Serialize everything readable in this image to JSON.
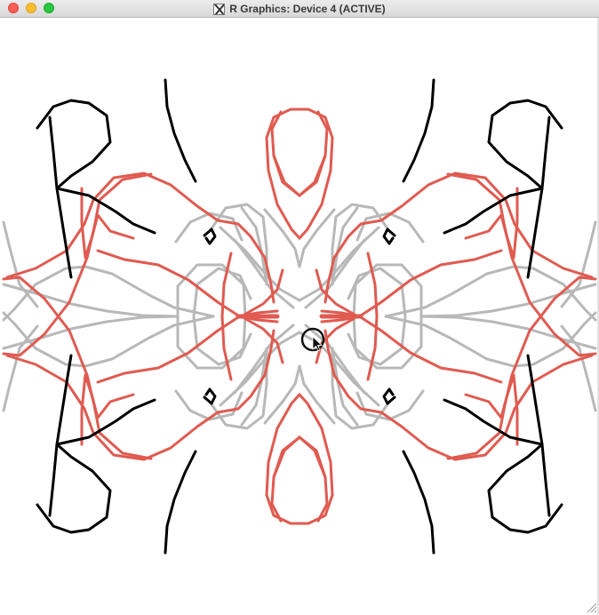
{
  "window": {
    "title": "R Graphics: Device 4 (ACTIVE)"
  },
  "icons": {
    "x11": "x11-app-icon",
    "cursor": "arrow-cursor-icon",
    "grip": "resize-grip-icon"
  },
  "colors": {
    "red": "#e05a50",
    "gray": "#b8b8b8",
    "black": "#000000"
  }
}
